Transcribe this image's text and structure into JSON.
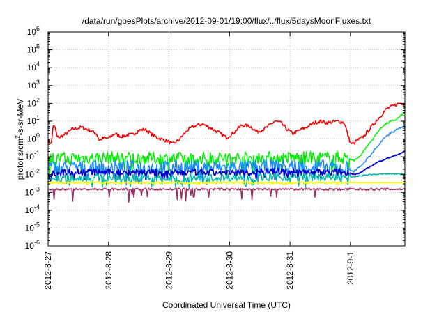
{
  "chart_data": {
    "type": "line",
    "title": "/data/run/goesPlots/archive/2012-09-01/19:00/flux/../flux/5daysMoonFluxes.txt",
    "xlabel": "Coordinated Universal Time (UTC)",
    "ylabel": "protons/cm2-s-sr-MeV",
    "ylabel_main": "protons/cm",
    "ylabel_sup": "2",
    "ylabel_rest": "-s-sr-MeV",
    "yscale": "log",
    "ylim": [
      1e-06,
      1000000.0
    ],
    "ytick_exponents": [
      -6,
      -5,
      -4,
      -3,
      -2,
      -1,
      0,
      1,
      2,
      3,
      4,
      5,
      6
    ],
    "ytick_base": "10",
    "xlim_days": [
      0,
      5.9
    ],
    "xtick_days": [
      0,
      1,
      2,
      3,
      4,
      5
    ],
    "xtick_labels": [
      "2012-8-27",
      "2012-8-28",
      "2012-8-29",
      "2012-8-30",
      "2012-8-31",
      "2012-9-1"
    ],
    "grid": true,
    "legend": "none",
    "series": [
      {
        "color": "#ee0000",
        "width": 1.6,
        "kind": "smooth",
        "noise": 0.1,
        "points": [
          [
            0,
            0.7
          ],
          [
            0.06,
            0.6
          ],
          [
            0.08,
            6
          ],
          [
            0.12,
            4
          ],
          [
            0.15,
            1.2
          ],
          [
            0.2,
            1.3
          ],
          [
            0.3,
            2
          ],
          [
            0.4,
            3.5
          ],
          [
            0.55,
            4.5
          ],
          [
            0.7,
            3
          ],
          [
            0.8,
            2
          ],
          [
            0.85,
            0.8
          ],
          [
            0.9,
            1.1
          ],
          [
            1.0,
            1.1
          ],
          [
            1.1,
            2
          ],
          [
            1.2,
            1.4
          ],
          [
            1.4,
            1.8
          ],
          [
            1.5,
            3
          ],
          [
            1.6,
            3.5
          ],
          [
            1.7,
            2
          ],
          [
            1.8,
            1.2
          ],
          [
            1.9,
            0.9
          ],
          [
            2.0,
            0.7
          ],
          [
            2.05,
            0.5
          ],
          [
            2.15,
            0.8
          ],
          [
            2.3,
            3
          ],
          [
            2.4,
            5
          ],
          [
            2.55,
            7
          ],
          [
            2.7,
            4
          ],
          [
            2.85,
            2
          ],
          [
            2.95,
            1.2
          ],
          [
            3.05,
            2
          ],
          [
            3.2,
            6
          ],
          [
            3.35,
            5
          ],
          [
            3.45,
            2.5
          ],
          [
            3.6,
            4
          ],
          [
            3.75,
            10
          ],
          [
            3.85,
            8
          ],
          [
            3.95,
            3.5
          ],
          [
            4.05,
            2
          ],
          [
            4.15,
            3
          ],
          [
            4.3,
            5
          ],
          [
            4.4,
            8
          ],
          [
            4.5,
            10
          ],
          [
            4.6,
            8
          ],
          [
            4.7,
            9
          ],
          [
            4.8,
            10
          ],
          [
            4.9,
            8
          ],
          [
            4.95,
            2
          ],
          [
            5.0,
            0.6
          ],
          [
            5.05,
            0.5
          ],
          [
            5.1,
            0.8
          ],
          [
            5.2,
            1.2
          ],
          [
            5.3,
            3
          ],
          [
            5.4,
            8
          ],
          [
            5.5,
            20
          ],
          [
            5.6,
            50
          ],
          [
            5.7,
            70
          ],
          [
            5.8,
            100
          ],
          [
            5.9,
            100
          ]
        ]
      },
      {
        "color": "#00ee00",
        "width": 1.5,
        "kind": "spiky",
        "noise": 0.35,
        "points": [
          [
            0,
            0.08
          ],
          [
            1.0,
            0.09
          ],
          [
            2.0,
            0.08
          ],
          [
            3.0,
            0.09
          ],
          [
            4.0,
            0.09
          ],
          [
            4.95,
            0.09
          ],
          [
            5.05,
            0.06
          ],
          [
            5.15,
            0.1
          ],
          [
            5.25,
            0.3
          ],
          [
            5.35,
            0.8
          ],
          [
            5.45,
            2.5
          ],
          [
            5.55,
            6
          ],
          [
            5.65,
            9
          ],
          [
            5.75,
            12
          ],
          [
            5.9,
            30
          ]
        ]
      },
      {
        "color": "#1a8cff",
        "width": 1.5,
        "kind": "spiky",
        "noise": 0.4,
        "points": [
          [
            0,
            0.025
          ],
          [
            1.0,
            0.025
          ],
          [
            2.0,
            0.025
          ],
          [
            3.0,
            0.025
          ],
          [
            4.0,
            0.03
          ],
          [
            4.95,
            0.025
          ],
          [
            5.05,
            0.015
          ],
          [
            5.15,
            0.025
          ],
          [
            5.25,
            0.06
          ],
          [
            5.35,
            0.15
          ],
          [
            5.45,
            0.4
          ],
          [
            5.55,
            1
          ],
          [
            5.65,
            2
          ],
          [
            5.75,
            3
          ],
          [
            5.9,
            6
          ]
        ]
      },
      {
        "color": "#0000cc",
        "width": 1.8,
        "kind": "spiky",
        "noise": 0.18,
        "points": [
          [
            0,
            0.012
          ],
          [
            0.5,
            0.015
          ],
          [
            1.0,
            0.013
          ],
          [
            1.5,
            0.015
          ],
          [
            2.0,
            0.012
          ],
          [
            2.5,
            0.014
          ],
          [
            3.0,
            0.012
          ],
          [
            3.5,
            0.015
          ],
          [
            4.0,
            0.015
          ],
          [
            4.5,
            0.014
          ],
          [
            4.95,
            0.015
          ],
          [
            5.05,
            0.01
          ],
          [
            5.15,
            0.012
          ],
          [
            5.3,
            0.025
          ],
          [
            5.45,
            0.05
          ],
          [
            5.6,
            0.08
          ],
          [
            5.75,
            0.12
          ],
          [
            5.9,
            0.2
          ]
        ]
      },
      {
        "color": "#00bbaa",
        "width": 1.5,
        "kind": "spiky",
        "noise": 0.22,
        "points": [
          [
            0,
            0.006
          ],
          [
            1.0,
            0.007
          ],
          [
            2.0,
            0.006
          ],
          [
            3.0,
            0.007
          ],
          [
            4.0,
            0.007
          ],
          [
            5.0,
            0.007
          ],
          [
            5.3,
            0.01
          ],
          [
            5.6,
            0.011
          ],
          [
            5.9,
            0.011
          ]
        ]
      },
      {
        "color": "#ffff00",
        "width": 1.6,
        "kind": "spiky",
        "noise": 0.05,
        "points": [
          [
            0,
            0.0035
          ],
          [
            1.0,
            0.0035
          ],
          [
            2.0,
            0.0035
          ],
          [
            3.0,
            0.0035
          ],
          [
            4.0,
            0.0035
          ],
          [
            5.0,
            0.0035
          ],
          [
            5.9,
            0.0035
          ]
        ]
      },
      {
        "color": "#993366",
        "width": 1.6,
        "kind": "dips",
        "noise": 0.06,
        "points": [
          [
            0,
            0.0015
          ],
          [
            1.0,
            0.0015
          ],
          [
            2.0,
            0.0015
          ],
          [
            3.0,
            0.0015
          ],
          [
            4.0,
            0.0015
          ],
          [
            5.0,
            0.0015
          ],
          [
            5.9,
            0.0015
          ]
        ]
      }
    ]
  }
}
